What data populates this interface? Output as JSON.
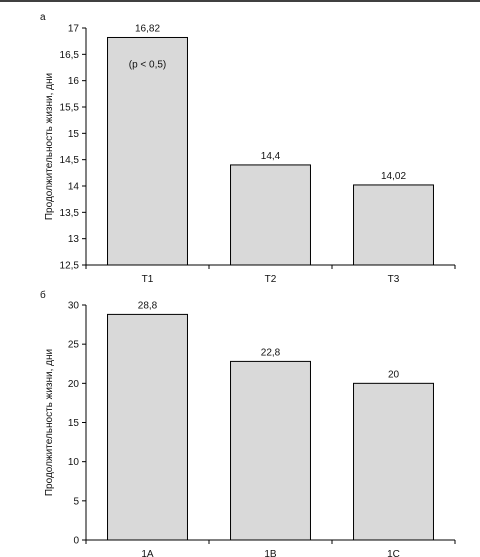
{
  "chart_data": [
    {
      "type": "bar",
      "panel_label": "а",
      "categories": [
        "T1",
        "T2",
        "T3"
      ],
      "values": [
        16.82,
        14.4,
        14.02
      ],
      "data_labels": [
        "16,82",
        "14,4",
        "14,02"
      ],
      "annotation": "(p < 0,5)",
      "ylabel": "Продолжительность жизни, дни",
      "ylim": [
        12.5,
        17
      ],
      "yticks": [
        12.5,
        13,
        13.5,
        14,
        14.5,
        15,
        15.5,
        16,
        16.5,
        17
      ],
      "ytick_labels": [
        "12,5",
        "13",
        "13,5",
        "14",
        "14,5",
        "15",
        "15,5",
        "16",
        "16,5",
        "17"
      ],
      "grid": false,
      "bar_color": "#d9d9d9"
    },
    {
      "type": "bar",
      "panel_label": "б",
      "categories": [
        "1A",
        "1B",
        "1C"
      ],
      "values": [
        28.8,
        22.8,
        20
      ],
      "data_labels": [
        "28,8",
        "22,8",
        "20"
      ],
      "ylabel": "Продолжительность жизни, дни",
      "ylim": [
        0,
        30
      ],
      "yticks": [
        0,
        5,
        10,
        15,
        20,
        25,
        30
      ],
      "ytick_labels": [
        "0",
        "5",
        "10",
        "15",
        "20",
        "25",
        "30"
      ],
      "grid": false,
      "bar_color": "#d9d9d9"
    }
  ]
}
